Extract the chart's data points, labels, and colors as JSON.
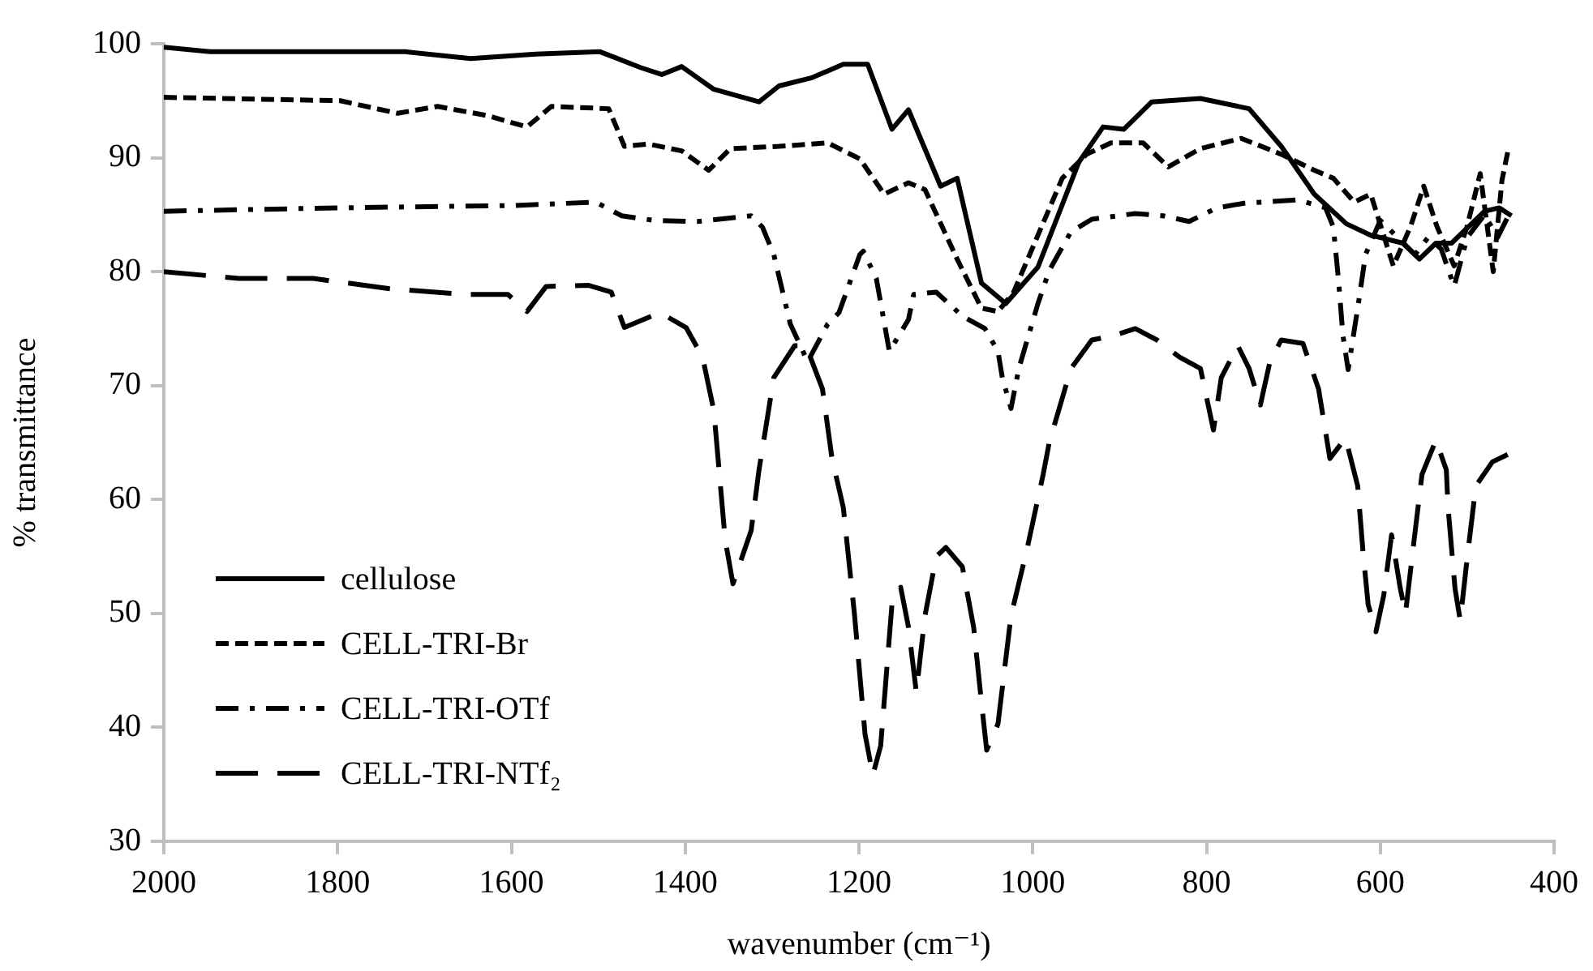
{
  "chart_data": {
    "type": "line",
    "xlabel": "wavenumber (cm⁻¹)",
    "ylabel": "% transmittance",
    "xlim": [
      2000,
      400
    ],
    "xticks": [
      2000,
      1800,
      1600,
      1400,
      1200,
      1000,
      800,
      600,
      400
    ],
    "ylim": [
      30,
      100
    ],
    "yticks": [
      30,
      40,
      50,
      60,
      70,
      80,
      90,
      100
    ],
    "grid": false,
    "legend": "bottom left",
    "marker": "none",
    "series": [
      {
        "name": "cellulose",
        "color": "#000000",
        "line_style": "solid",
        "x": [
          2000,
          1946,
          1722,
          1647,
          1572,
          1498,
          1451,
          1427,
          1404,
          1367,
          1315,
          1292,
          1255,
          1218,
          1190,
          1162,
          1143,
          1106,
          1087,
          1059,
          1031,
          994,
          947,
          919,
          895,
          863,
          807,
          751,
          714,
          676,
          639,
          611,
          574,
          555,
          536,
          518,
          480,
          463,
          449
        ],
        "values": [
          99.7,
          99.3,
          99.3,
          98.7,
          99.1,
          99.3,
          97.9,
          97.3,
          98.0,
          96.0,
          94.9,
          96.3,
          97.0,
          98.2,
          98.2,
          92.5,
          94.2,
          87.5,
          88.2,
          79.0,
          77.2,
          80.4,
          89.6,
          92.7,
          92.5,
          94.9,
          95.2,
          94.3,
          91.0,
          86.8,
          84.2,
          83.2,
          82.5,
          81.1,
          82.5,
          82.5,
          85.3,
          85.6,
          84.9
        ]
      },
      {
        "name": "CELL-TRI-Br",
        "color": "#000000",
        "line_style": "dashed",
        "x": [
          2000,
          1797,
          1731,
          1685,
          1628,
          1582,
          1554,
          1488,
          1470,
          1442,
          1404,
          1373,
          1348,
          1292,
          1236,
          1199,
          1171,
          1143,
          1124,
          1087,
          1059,
          1040,
          1022,
          966,
          938,
          910,
          873,
          844,
          807,
          760,
          714,
          676,
          654,
          630,
          611,
          585,
          565,
          550,
          535,
          515,
          500,
          485,
          470,
          460,
          452
        ],
        "values": [
          95.3,
          95.0,
          93.9,
          94.5,
          93.7,
          92.7,
          94.5,
          94.3,
          91.0,
          91.2,
          90.6,
          88.9,
          90.8,
          91.0,
          91.3,
          89.9,
          86.8,
          87.8,
          87.2,
          81.1,
          76.8,
          76.5,
          78.2,
          88.2,
          90.3,
          91.3,
          91.3,
          89.2,
          90.8,
          91.7,
          90.3,
          88.9,
          88.2,
          86.1,
          86.8,
          80.5,
          84.0,
          87.5,
          84.0,
          80.5,
          84.0,
          88.6,
          80.0,
          88.0,
          91.0
        ]
      },
      {
        "name": "CELL-TRI-OTf",
        "color": "#000000",
        "line_style": "dashdot",
        "x": [
          2000,
          1800,
          1600,
          1503,
          1473,
          1436,
          1386,
          1324,
          1311,
          1298,
          1279,
          1259,
          1236,
          1223,
          1199,
          1195,
          1180,
          1165,
          1143,
          1137,
          1111,
          1081,
          1055,
          1040,
          1035,
          1025,
          1016,
          994,
          981,
          956,
          932,
          882,
          850,
          820,
          788,
          757,
          695,
          663,
          654,
          648,
          643,
          637,
          624,
          617,
          600,
          580,
          560,
          545,
          530,
          515,
          500,
          480,
          465,
          452
        ],
        "values": [
          85.3,
          85.6,
          85.8,
          86.1,
          84.9,
          84.5,
          84.4,
          84.9,
          83.9,
          81.5,
          75.4,
          72.1,
          75.4,
          76.4,
          81.5,
          81.8,
          79.4,
          73.0,
          75.8,
          78.0,
          78.2,
          76.1,
          75.0,
          73.0,
          70.7,
          68.0,
          71.5,
          77.2,
          80.1,
          83.5,
          84.6,
          85.1,
          84.9,
          84.4,
          85.6,
          86.0,
          86.3,
          85.6,
          83.9,
          79.2,
          74.4,
          71.4,
          77.8,
          81.5,
          84.5,
          83.0,
          81.5,
          83.0,
          82.0,
          78.7,
          83.0,
          85.0,
          83.0,
          85.0
        ]
      },
      {
        "name": "CELL-TRI-NTf₂",
        "color": "#000000",
        "line_style": "longdash",
        "x": [
          2000,
          1914,
          1828,
          1740,
          1653,
          1604,
          1582,
          1560,
          1511,
          1485,
          1470,
          1429,
          1399,
          1380,
          1367,
          1361,
          1354,
          1345,
          1324,
          1315,
          1298,
          1274,
          1261,
          1242,
          1231,
          1218,
          1205,
          1193,
          1184,
          1175,
          1162,
          1152,
          1143,
          1134,
          1124,
          1111,
          1100,
          1081,
          1068,
          1059,
          1053,
          1040,
          1025,
          1007,
          988,
          981,
          956,
          932,
          906,
          882,
          857,
          831,
          807,
          792,
          783,
          764,
          751,
          738,
          727,
          714,
          689,
          671,
          658,
          640,
          634,
          626,
          620,
          614,
          605,
          596,
          587,
          577,
          571,
          561,
          552,
          536,
          524,
          522,
          514,
          508,
          499,
          490,
          471,
          452
        ],
        "values": [
          80.0,
          79.4,
          79.4,
          78.5,
          78.0,
          78.0,
          76.5,
          78.7,
          78.8,
          78.2,
          75.1,
          76.4,
          75.1,
          72.5,
          67.8,
          62.6,
          56.5,
          52.6,
          57.3,
          62.6,
          70.7,
          73.5,
          73.5,
          69.7,
          63.6,
          59.3,
          49.8,
          39.4,
          35.8,
          38.4,
          50.8,
          52.3,
          48.8,
          43.1,
          49.8,
          55.0,
          55.8,
          54.1,
          48.8,
          42.2,
          38.0,
          40.3,
          49.8,
          55.5,
          62.2,
          65.0,
          71.5,
          74.0,
          74.4,
          75.0,
          74.0,
          72.5,
          71.5,
          66.1,
          70.7,
          73.5,
          71.5,
          68.3,
          72.1,
          74.0,
          73.7,
          69.7,
          63.6,
          65.4,
          63.6,
          61.2,
          55.5,
          50.8,
          48.4,
          51.6,
          56.9,
          52.2,
          50.0,
          56.5,
          62.2,
          65.2,
          62.6,
          59.3,
          52.2,
          49.4,
          55.5,
          61.2,
          63.3,
          64.0
        ]
      }
    ]
  }
}
